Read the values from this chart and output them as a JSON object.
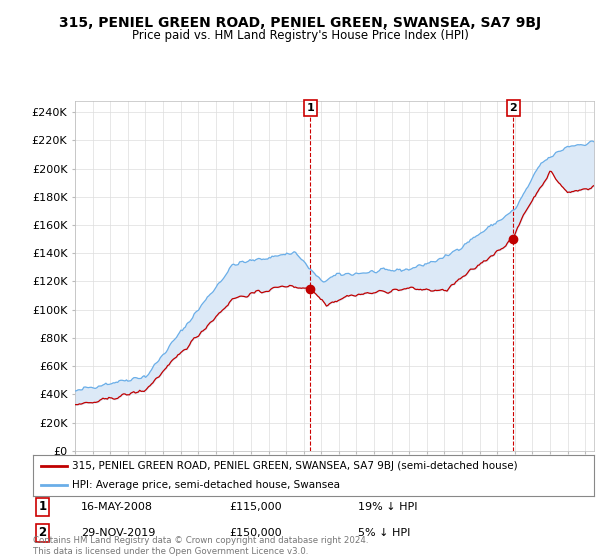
{
  "title": "315, PENIEL GREEN ROAD, PENIEL GREEN, SWANSEA, SA7 9BJ",
  "subtitle": "Price paid vs. HM Land Registry's House Price Index (HPI)",
  "ylabel_ticks": [
    "£0",
    "£20K",
    "£40K",
    "£60K",
    "£80K",
    "£100K",
    "£120K",
    "£140K",
    "£160K",
    "£180K",
    "£200K",
    "£220K",
    "£240K"
  ],
  "ytick_values": [
    0,
    20000,
    40000,
    60000,
    80000,
    100000,
    120000,
    140000,
    160000,
    180000,
    200000,
    220000,
    240000
  ],
  "ylim": [
    0,
    248000
  ],
  "xlim_start": 1995.0,
  "xlim_end": 2024.5,
  "hpi_color": "#6aaee8",
  "price_color": "#c00000",
  "fill_color": "#dce9f7",
  "marker1_x": 2008.37,
  "marker1_y": 115000,
  "marker2_x": 2019.91,
  "marker2_y": 150000,
  "sale1_date": "16-MAY-2008",
  "sale1_price": "£115,000",
  "sale1_note": "19% ↓ HPI",
  "sale2_date": "29-NOV-2019",
  "sale2_price": "£150,000",
  "sale2_note": "5% ↓ HPI",
  "legend_label1": "315, PENIEL GREEN ROAD, PENIEL GREEN, SWANSEA, SA7 9BJ (semi-detached house)",
  "legend_label2": "HPI: Average price, semi-detached house, Swansea",
  "footer": "Contains HM Land Registry data © Crown copyright and database right 2024.\nThis data is licensed under the Open Government Licence v3.0.",
  "background_color": "#ffffff",
  "grid_color": "#dddddd"
}
